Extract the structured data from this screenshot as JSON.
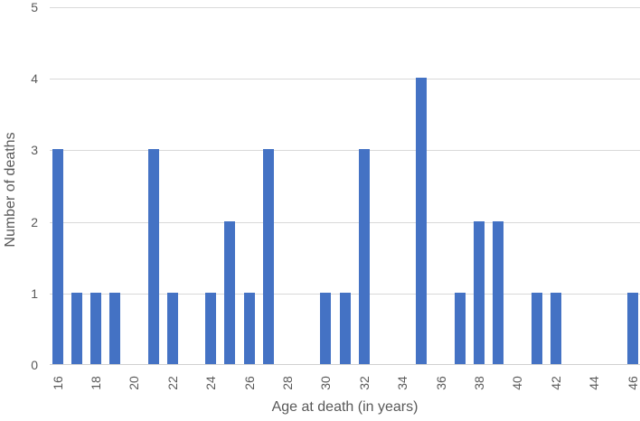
{
  "chart_data": {
    "type": "bar",
    "title": "",
    "xlabel": "Age at death (in years)",
    "ylabel": "Number of deaths",
    "x": [
      16,
      17,
      18,
      19,
      20,
      21,
      22,
      23,
      24,
      25,
      26,
      27,
      28,
      29,
      30,
      31,
      32,
      33,
      34,
      35,
      36,
      37,
      38,
      39,
      40,
      41,
      42,
      43,
      44,
      45,
      46
    ],
    "values": [
      3,
      1,
      1,
      1,
      0,
      3,
      1,
      0,
      1,
      2,
      1,
      3,
      0,
      0,
      1,
      1,
      3,
      0,
      0,
      4,
      0,
      1,
      2,
      2,
      0,
      1,
      1,
      0,
      0,
      0,
      1
    ],
    "ylim": [
      0,
      5
    ],
    "y_ticks": [
      0,
      1,
      2,
      3,
      4,
      5
    ],
    "x_tick_labels": [
      16,
      18,
      20,
      22,
      24,
      26,
      28,
      30,
      32,
      34,
      36,
      38,
      40,
      42,
      44,
      46
    ],
    "grid": true,
    "legend": "none",
    "colors": {
      "bar": "#4472c4",
      "gridline": "#d9d9d9",
      "axis_text": "#595959",
      "background": "#ffffff"
    }
  }
}
